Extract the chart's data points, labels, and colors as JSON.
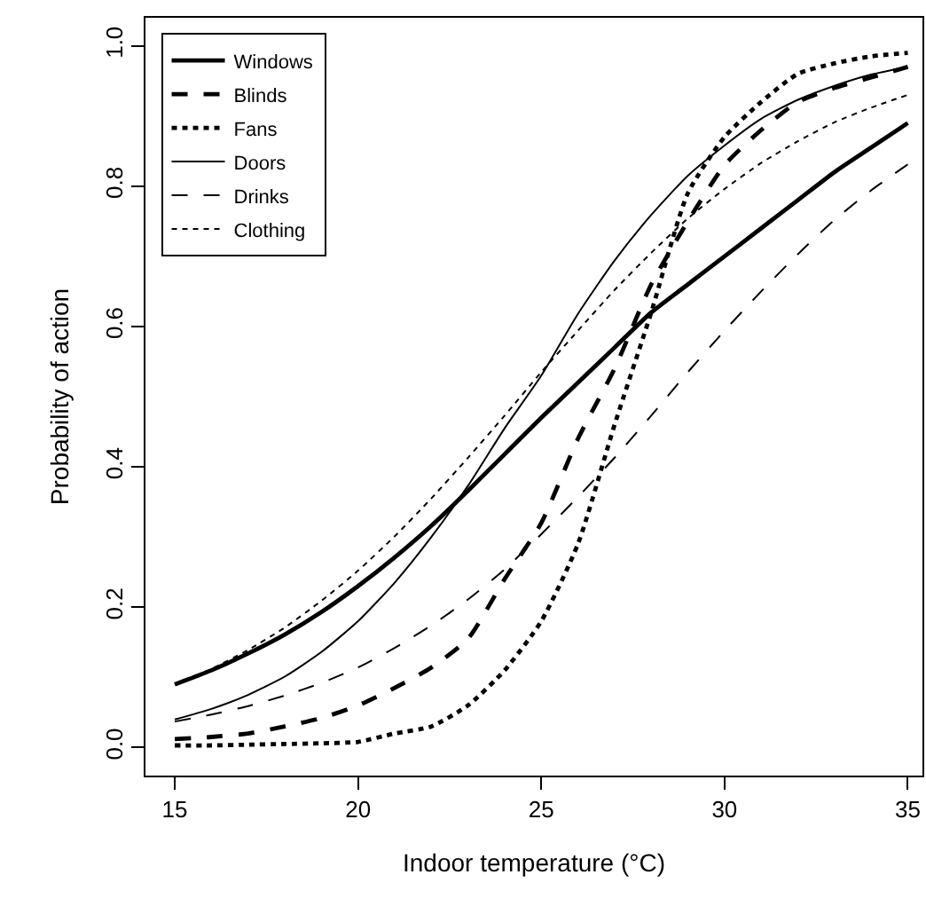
{
  "chart_data": {
    "type": "line",
    "xlabel": "Indoor temperature (°C)",
    "ylabel": "Probability of action",
    "x": [
      15,
      16,
      17,
      18,
      19,
      20,
      21,
      22,
      23,
      24,
      25,
      26,
      27,
      28,
      29,
      30,
      31,
      32,
      33,
      34,
      35
    ],
    "series": [
      {
        "name": "Windows",
        "color": "#000000",
        "line_style": "solid",
        "values": [
          0.09,
          0.11,
          0.134,
          0.161,
          0.193,
          0.23,
          0.271,
          0.316,
          0.366,
          0.418,
          0.47,
          0.52,
          0.57,
          0.62,
          0.66,
          0.7,
          0.74,
          0.78,
          0.82,
          0.855,
          0.89
        ]
      },
      {
        "name": "Blinds",
        "color": "#000000",
        "line_style": "dashed",
        "values": [
          0.012,
          0.015,
          0.02,
          0.03,
          0.042,
          0.06,
          0.085,
          0.114,
          0.155,
          0.24,
          0.32,
          0.44,
          0.54,
          0.66,
          0.75,
          0.83,
          0.88,
          0.92,
          0.94,
          0.955,
          0.97
        ]
      },
      {
        "name": "Fans",
        "color": "#000000",
        "line_style": "dotted",
        "values": [
          0.003,
          0.003,
          0.004,
          0.005,
          0.006,
          0.008,
          0.02,
          0.03,
          0.06,
          0.11,
          0.18,
          0.29,
          0.46,
          0.62,
          0.79,
          0.87,
          0.92,
          0.96,
          0.975,
          0.985,
          0.99
        ]
      },
      {
        "name": "Doors",
        "color": "#000000",
        "line_style": "solid",
        "values": [
          0.04,
          0.055,
          0.075,
          0.101,
          0.136,
          0.18,
          0.235,
          0.3,
          0.373,
          0.455,
          0.53,
          0.618,
          0.694,
          0.759,
          0.815,
          0.858,
          0.896,
          0.923,
          0.943,
          0.959,
          0.97
        ]
      },
      {
        "name": "Drinks",
        "color": "#000000",
        "line_style": "dashed",
        "values": [
          0.037,
          0.047,
          0.059,
          0.074,
          0.092,
          0.114,
          0.142,
          0.174,
          0.211,
          0.254,
          0.304,
          0.357,
          0.413,
          0.473,
          0.535,
          0.594,
          0.65,
          0.703,
          0.752,
          0.794,
          0.831
        ]
      },
      {
        "name": "Clothing",
        "color": "#000000",
        "line_style": "dotted",
        "values": [
          0.09,
          0.112,
          0.139,
          0.171,
          0.209,
          0.252,
          0.301,
          0.355,
          0.413,
          0.473,
          0.535,
          0.594,
          0.652,
          0.705,
          0.754,
          0.796,
          0.833,
          0.864,
          0.891,
          0.912,
          0.93
        ]
      }
    ],
    "xlim": [
      14.2,
      35.4
    ],
    "xticks": [
      15,
      20,
      25,
      30,
      35
    ],
    "ylim": [
      -0.04,
      1.04
    ],
    "yticks": [
      {
        "value": 0,
        "label": "0.0"
      },
      {
        "value": 0.2,
        "label": "0.2"
      },
      {
        "value": 0.4,
        "label": "0.4"
      },
      {
        "value": 0.6,
        "label": "0.6"
      },
      {
        "value": 0.8,
        "label": "0.8"
      },
      {
        "value": 1,
        "label": "1.0"
      }
    ],
    "grid": false,
    "legend": "top left",
    "marker": "none"
  }
}
